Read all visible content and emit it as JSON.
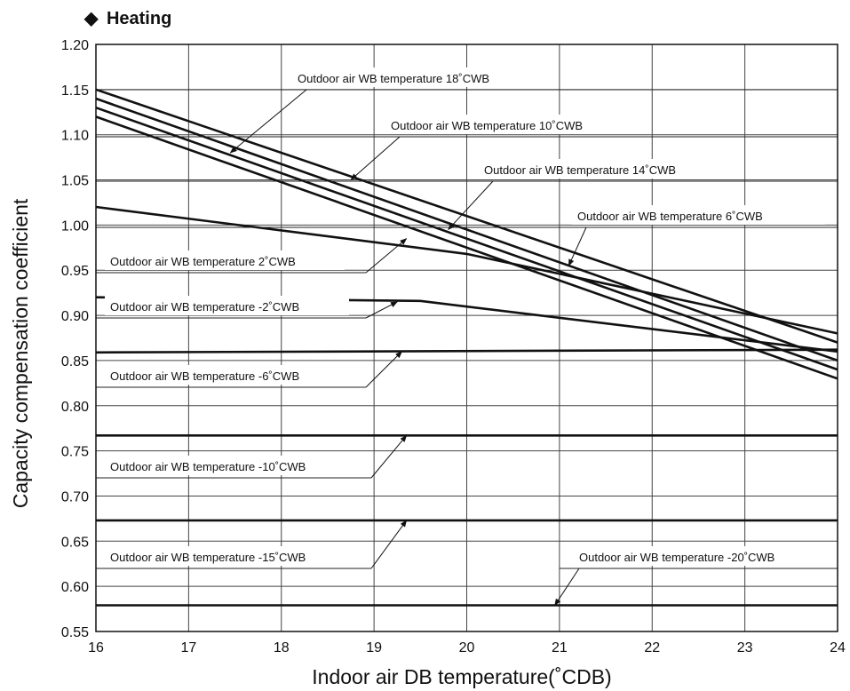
{
  "chart_data": {
    "type": "line",
    "title": "Heating",
    "title_marker": "◆",
    "xlabel": "Indoor air DB temperature(˚CDB)",
    "ylabel": "Capacity compensation coefficient",
    "xlim": [
      16,
      24
    ],
    "ylim": [
      0.55,
      1.2
    ],
    "xticks": [
      16,
      17,
      18,
      19,
      20,
      21,
      22,
      23,
      24
    ],
    "yticks": [
      "0.55",
      "0.60",
      "0.65",
      "0.70",
      "0.75",
      "0.80",
      "0.85",
      "0.90",
      "0.95",
      "1.00",
      "1.05",
      "1.10",
      "1.15",
      "1.20"
    ],
    "grid": true,
    "legend": "none",
    "series": [
      {
        "name": "Outdoor air WB temperature 18˚CWB",
        "points": [
          [
            16,
            1.15
          ],
          [
            24,
            0.87
          ]
        ]
      },
      {
        "name": "Outdoor air WB temperature 10˚CWB",
        "points": [
          [
            16,
            1.14
          ],
          [
            24,
            0.85
          ]
        ]
      },
      {
        "name": "Outdoor air WB temperature 14˚CWB",
        "points": [
          [
            16,
            1.13
          ],
          [
            24,
            0.84
          ]
        ]
      },
      {
        "name": "Outdoor air WB temperature 6˚CWB",
        "points": [
          [
            16,
            1.12
          ],
          [
            24,
            0.83
          ]
        ]
      },
      {
        "name": "Outdoor air WB temperature 2˚CWB",
        "points": [
          [
            16,
            1.02
          ],
          [
            20,
            0.968
          ],
          [
            24,
            0.88
          ]
        ]
      },
      {
        "name": "Outdoor air WB temperature -2˚CWB",
        "points": [
          [
            16,
            0.92
          ],
          [
            19.5,
            0.916
          ],
          [
            24,
            0.86
          ]
        ]
      },
      {
        "name": "Outdoor air WB temperature -6˚CWB",
        "points": [
          [
            16,
            0.859
          ],
          [
            24,
            0.862
          ]
        ]
      },
      {
        "name": "Outdoor air WB temperature -10˚CWB",
        "points": [
          [
            16,
            0.767
          ],
          [
            24,
            0.767
          ]
        ]
      },
      {
        "name": "Outdoor air WB temperature -15˚CWB",
        "points": [
          [
            16,
            0.673
          ],
          [
            24,
            0.673
          ]
        ]
      },
      {
        "name": "Outdoor air WB temperature -20˚CWB",
        "points": [
          [
            16,
            0.579
          ],
          [
            24,
            0.579
          ]
        ]
      }
    ],
    "annotations": [
      {
        "text": "Outdoor air WB temperature 18˚CWB",
        "target": [
          17.45,
          1.08
        ]
      },
      {
        "text": "Outdoor air WB temperature 10˚CWB",
        "target": [
          18.75,
          1.05
        ]
      },
      {
        "text": "Outdoor air WB temperature 14˚CWB",
        "target": [
          19.8,
          0.995
        ]
      },
      {
        "text": "Outdoor air WB temperature 6˚CWB",
        "target": [
          21.1,
          0.955
        ]
      },
      {
        "text": "Outdoor air WB temperature 2˚CWB",
        "target": [
          19.35,
          0.985
        ]
      },
      {
        "text": "Outdoor air WB temperature -2˚CWB",
        "target": [
          19.25,
          0.915
        ]
      },
      {
        "text": "Outdoor air WB temperature -6˚CWB",
        "target": [
          19.3,
          0.86
        ]
      },
      {
        "text": "Outdoor air WB temperature -10˚CWB",
        "target": [
          19.35,
          0.767
        ]
      },
      {
        "text": "Outdoor air WB temperature -15˚CWB",
        "target": [
          19.35,
          0.673
        ]
      },
      {
        "text": "Outdoor air WB temperature -20˚CWB",
        "target": [
          20.95,
          0.579
        ]
      }
    ]
  }
}
